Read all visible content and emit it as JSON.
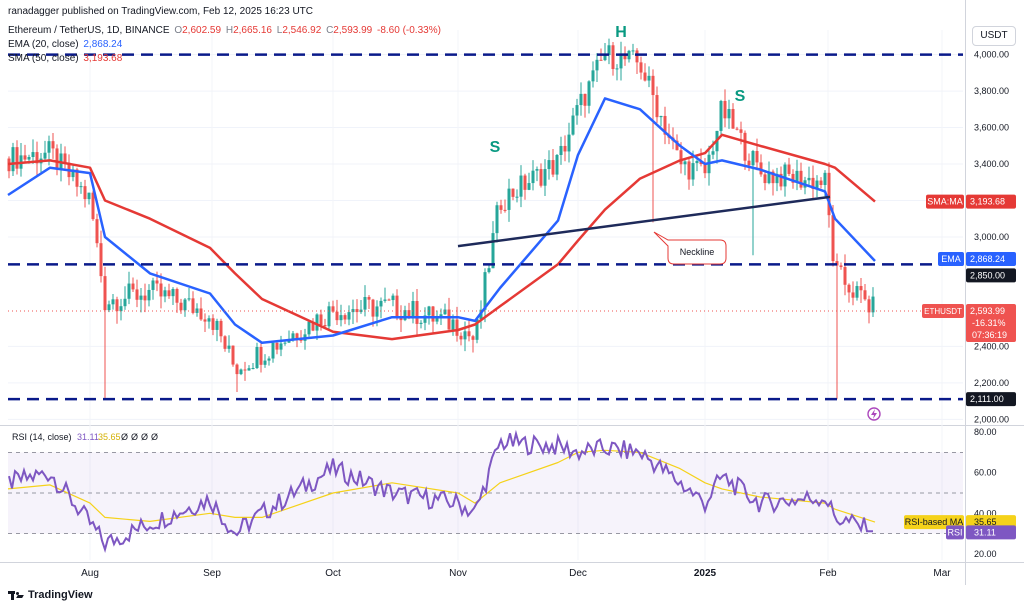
{
  "header": {
    "publisher_line": "ranadagger published on TradingView.com, Feb 12, 2025 16:23 UTC"
  },
  "legend": {
    "symbol": "Ethereum / TetherUS, 1D, BINANCE",
    "ohlc": {
      "o_label": "O",
      "o": "2,602.59",
      "h_label": "H",
      "h": "2,665.16",
      "l_label": "L",
      "l": "2,546.92",
      "c_label": "C",
      "c": "2,593.99",
      "chg": "-8.60 (-0.33%)"
    },
    "ema": {
      "label": "EMA (20, close)",
      "value": "2,868.24"
    },
    "sma": {
      "label": "SMA (50, close)",
      "value": "3,193.68"
    }
  },
  "currency_box": "USDT",
  "colors": {
    "up": "#26a69a",
    "down": "#ef5350",
    "ema": "#2962ff",
    "sma": "#e53935",
    "rsi": "#7e57c2",
    "rsi_ma": "#f5d21a",
    "level": "#0a1a8a",
    "neckline": "#1e2a5a",
    "annotation": "#089981",
    "label_bg_level": "#131722"
  },
  "annotations": {
    "left_shoulder": "S",
    "head": "H",
    "right_shoulder": "S",
    "neckline": "Neckline"
  },
  "price_scale": {
    "ticks": [
      "4,000.00",
      "3,800.00",
      "3,600.00",
      "3,400.00",
      "3,200.00",
      "3,000.00",
      "2,400.00",
      "2,200.00",
      "2,000.00"
    ],
    "labels": {
      "sma_tag": "SMA:MA",
      "sma_value": "3,193.68",
      "ema_tag": "EMA",
      "ema_value": "2,868.24",
      "level_2850": "2,850.00",
      "symbol_tag": "ETHUSDT",
      "price": "2,593.99",
      "change_pct": "-16.31%",
      "countdown": "07:36:19",
      "level_2111": "2,111.00"
    }
  },
  "rsi_panel": {
    "legend_label": "RSI (14, close)",
    "rsi_value": "31.11",
    "rsi_ma_value": "35.65",
    "extra": [
      "Ø",
      "Ø",
      "Ø",
      "Ø"
    ],
    "ticks": [
      "80.00",
      "60.00",
      "40.00",
      "20.00"
    ],
    "ma_tag": "RSI-based MA",
    "ma_value": "35.65",
    "rsi_tag": "RSI",
    "rsi_tag_value": "31.11"
  },
  "time_axis": {
    "labels": [
      "Aug",
      "Sep",
      "Oct",
      "Nov",
      "Dec",
      "2025",
      "Feb",
      "Mar"
    ]
  },
  "footer": {
    "brand": "TradingView"
  },
  "chart_data": {
    "type": "line",
    "title": "Ethereum / TetherUS, 1D, BINANCE",
    "x_unit": "date",
    "x": [
      "Jul 1",
      "Jul 15",
      "Aug 1",
      "Aug 5",
      "Aug 15",
      "Sep 1",
      "Sep 7",
      "Sep 15",
      "Oct 1",
      "Oct 15",
      "Nov 1",
      "Nov 5",
      "Nov 12",
      "Nov 25",
      "Dec 1",
      "Dec 8",
      "Dec 16",
      "Dec 25",
      "Jan 1",
      "Jan 7",
      "Jan 15",
      "Feb 1",
      "Feb 3",
      "Feb 12"
    ],
    "series": [
      {
        "name": "ETHUSDT",
        "values": [
          3430,
          3460,
          3200,
          2650,
          2700,
          2580,
          2280,
          2370,
          2600,
          2620,
          2520,
          2430,
          3200,
          3410,
          3700,
          4000,
          3950,
          3400,
          3350,
          3700,
          3350,
          3300,
          2800,
          2594
        ]
      },
      {
        "name": "EMA (20, close)",
        "values": [
          3230,
          3380,
          3350,
          3000,
          2800,
          2690,
          2520,
          2420,
          2460,
          2560,
          2560,
          2540,
          2720,
          3090,
          3450,
          3760,
          3700,
          3500,
          3400,
          3420,
          3370,
          3250,
          3100,
          2868
        ]
      },
      {
        "name": "SMA (50, close)",
        "values": [
          3400,
          3420,
          3380,
          3200,
          3100,
          2940,
          2800,
          2660,
          2480,
          2440,
          2490,
          2520,
          2620,
          2850,
          2980,
          3150,
          3320,
          3420,
          3460,
          3560,
          3500,
          3400,
          3380,
          3194
        ]
      },
      {
        "name": "RSI (14, close)",
        "values": [
          55,
          60,
          35,
          25,
          35,
          47,
          30,
          40,
          62,
          50,
          45,
          40,
          75,
          73,
          70,
          72,
          70,
          55,
          45,
          58,
          45,
          48,
          38,
          31.11
        ]
      },
      {
        "name": "RSI-based MA",
        "values": [
          52,
          54,
          45,
          38,
          36,
          40,
          38,
          38,
          50,
          55,
          50,
          45,
          55,
          65,
          70,
          71,
          70,
          62,
          55,
          52,
          48,
          45,
          42,
          35.65
        ]
      }
    ],
    "levels": [
      2850,
      2111,
      4000
    ],
    "ylim": [
      1980,
      4080
    ],
    "rsi_ylim": [
      17,
      82
    ],
    "grid": true,
    "legend": "top-left"
  }
}
